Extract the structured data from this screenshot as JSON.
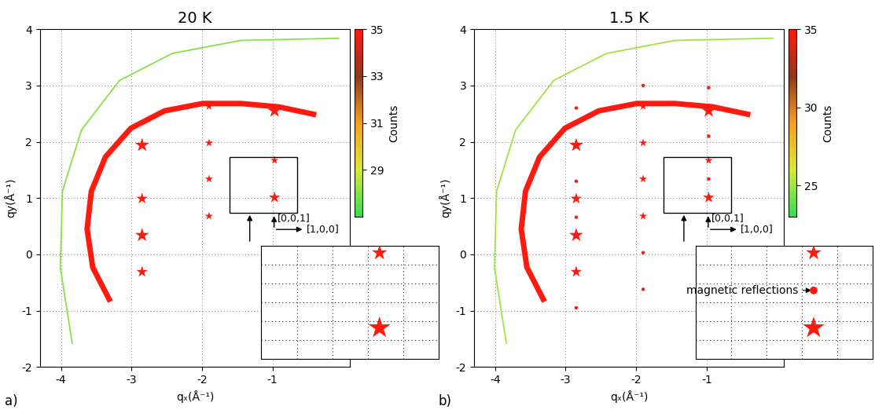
{
  "chart_data": [
    {
      "type": "scatter",
      "title": "20 K",
      "panel_label": "a)",
      "x_label": "qₓ(Å⁻¹)",
      "y_label": "qy(Å⁻¹)",
      "xlim": [
        -4.3,
        0.1
      ],
      "ylim": [
        -2,
        4
      ],
      "xticks": [
        -4,
        -3,
        -2,
        -1
      ],
      "yticks": [
        -2,
        -1,
        0,
        1,
        2,
        3,
        4
      ],
      "grid": true,
      "arcs": [
        {
          "x": [
            -3.3,
            -3.55,
            -3.63,
            -3.57,
            -3.37,
            -3.01,
            -2.53,
            -1.99,
            -1.45,
            -0.91,
            -0.38
          ],
          "y": [
            -0.84,
            -0.23,
            0.45,
            1.12,
            1.73,
            2.24,
            2.55,
            2.68,
            2.68,
            2.62,
            2.48
          ],
          "counts": 35
        },
        {
          "x": [
            -3.84,
            -4.01,
            -3.98,
            -3.71,
            -3.17,
            -2.42,
            -1.45,
            -0.05
          ],
          "y": [
            -1.59,
            -0.23,
            1.12,
            2.21,
            3.09,
            3.57,
            3.8,
            3.84
          ],
          "counts": 28
        }
      ],
      "peaks": {
        "x": [
          -0.97,
          -0.97,
          -0.97,
          -1.9,
          -1.9,
          -1.9,
          -1.9,
          -2.85,
          -2.85,
          -2.85,
          -2.85
        ],
        "y": [
          2.55,
          1.67,
          1.01,
          2.63,
          1.98,
          1.34,
          0.68,
          1.94,
          0.99,
          0.34,
          -0.31
        ],
        "size": [
          3,
          1,
          2,
          1,
          1,
          1,
          1,
          3,
          2,
          3,
          2
        ],
        "counts": [
          35,
          35,
          35,
          35,
          35,
          35,
          35,
          35,
          35,
          35,
          35
        ],
        "marker": "star"
      },
      "colorbar": {
        "label": "Counts",
        "range": [
          27,
          35
        ],
        "ticks": [
          29,
          31,
          33,
          35
        ]
      },
      "inset": {
        "xlim": [
          -1.61,
          -0.65
        ],
        "ylim": [
          0.74,
          1.73
        ],
        "tick_labels": false
      },
      "annotations": [
        "[0,0,1]",
        "[1,0,0]"
      ]
    },
    {
      "type": "scatter",
      "title": "1.5 K",
      "panel_label": "b)",
      "x_label": "qₓ(Å⁻¹)",
      "y_label": "qy(Å⁻¹)",
      "xlim": [
        -4.3,
        0.1
      ],
      "ylim": [
        -2,
        4
      ],
      "xticks": [
        -4,
        -3,
        -2,
        -1
      ],
      "yticks": [
        -2,
        -1,
        0,
        1,
        2,
        3,
        4
      ],
      "grid": true,
      "arcs": [
        {
          "x": [
            -3.3,
            -3.55,
            -3.63,
            -3.57,
            -3.37,
            -3.01,
            -2.53,
            -1.99,
            -1.45,
            -0.91,
            -0.38
          ],
          "y": [
            -0.84,
            -0.23,
            0.45,
            1.12,
            1.73,
            2.24,
            2.55,
            2.68,
            2.68,
            2.62,
            2.48
          ],
          "counts": 35
        },
        {
          "x": [
            -3.84,
            -4.01,
            -3.98,
            -3.71,
            -3.17,
            -2.42,
            -1.45,
            -0.05
          ],
          "y": [
            -1.59,
            -0.23,
            1.12,
            2.21,
            3.09,
            3.57,
            3.8,
            3.84
          ],
          "counts": 25
        }
      ],
      "peaks": {
        "x": [
          -0.97,
          -0.97,
          -0.97,
          -1.9,
          -1.9,
          -1.9,
          -1.9,
          -2.85,
          -2.85,
          -2.85,
          -2.85
        ],
        "y": [
          2.55,
          1.67,
          1.01,
          2.63,
          1.98,
          1.34,
          0.68,
          1.94,
          0.99,
          0.34,
          -0.31
        ],
        "size": [
          3,
          1,
          2,
          1,
          1,
          1,
          1,
          3,
          2,
          3,
          2
        ],
        "counts": [
          35,
          35,
          35,
          35,
          35,
          35,
          35,
          35,
          35,
          35,
          35
        ],
        "marker": "star"
      },
      "magnetic_peaks": {
        "x": [
          -0.97,
          -0.97,
          -0.97,
          -1.9,
          -1.9,
          -1.9,
          -2.85,
          -2.85,
          -2.85,
          -2.85
        ],
        "y": [
          2.96,
          2.1,
          1.34,
          3.0,
          0.03,
          -0.62,
          2.6,
          1.3,
          0.66,
          -0.95
        ],
        "size": [
          1,
          1,
          1,
          1,
          1,
          1,
          1,
          1,
          1,
          1
        ],
        "counts": [
          35,
          35,
          35,
          35,
          35,
          35,
          35,
          35,
          35,
          35
        ],
        "marker": "circle"
      },
      "colorbar": {
        "label": "Counts",
        "range": [
          23,
          35
        ],
        "ticks": [
          25,
          30,
          35
        ]
      },
      "inset": {
        "xlim": [
          -1.61,
          -0.65
        ],
        "ylim": [
          0.74,
          1.73
        ],
        "tick_labels": false,
        "annotation": "magnetic reflections"
      },
      "annotations": [
        "[0,0,1]",
        "[1,0,0]"
      ]
    }
  ]
}
